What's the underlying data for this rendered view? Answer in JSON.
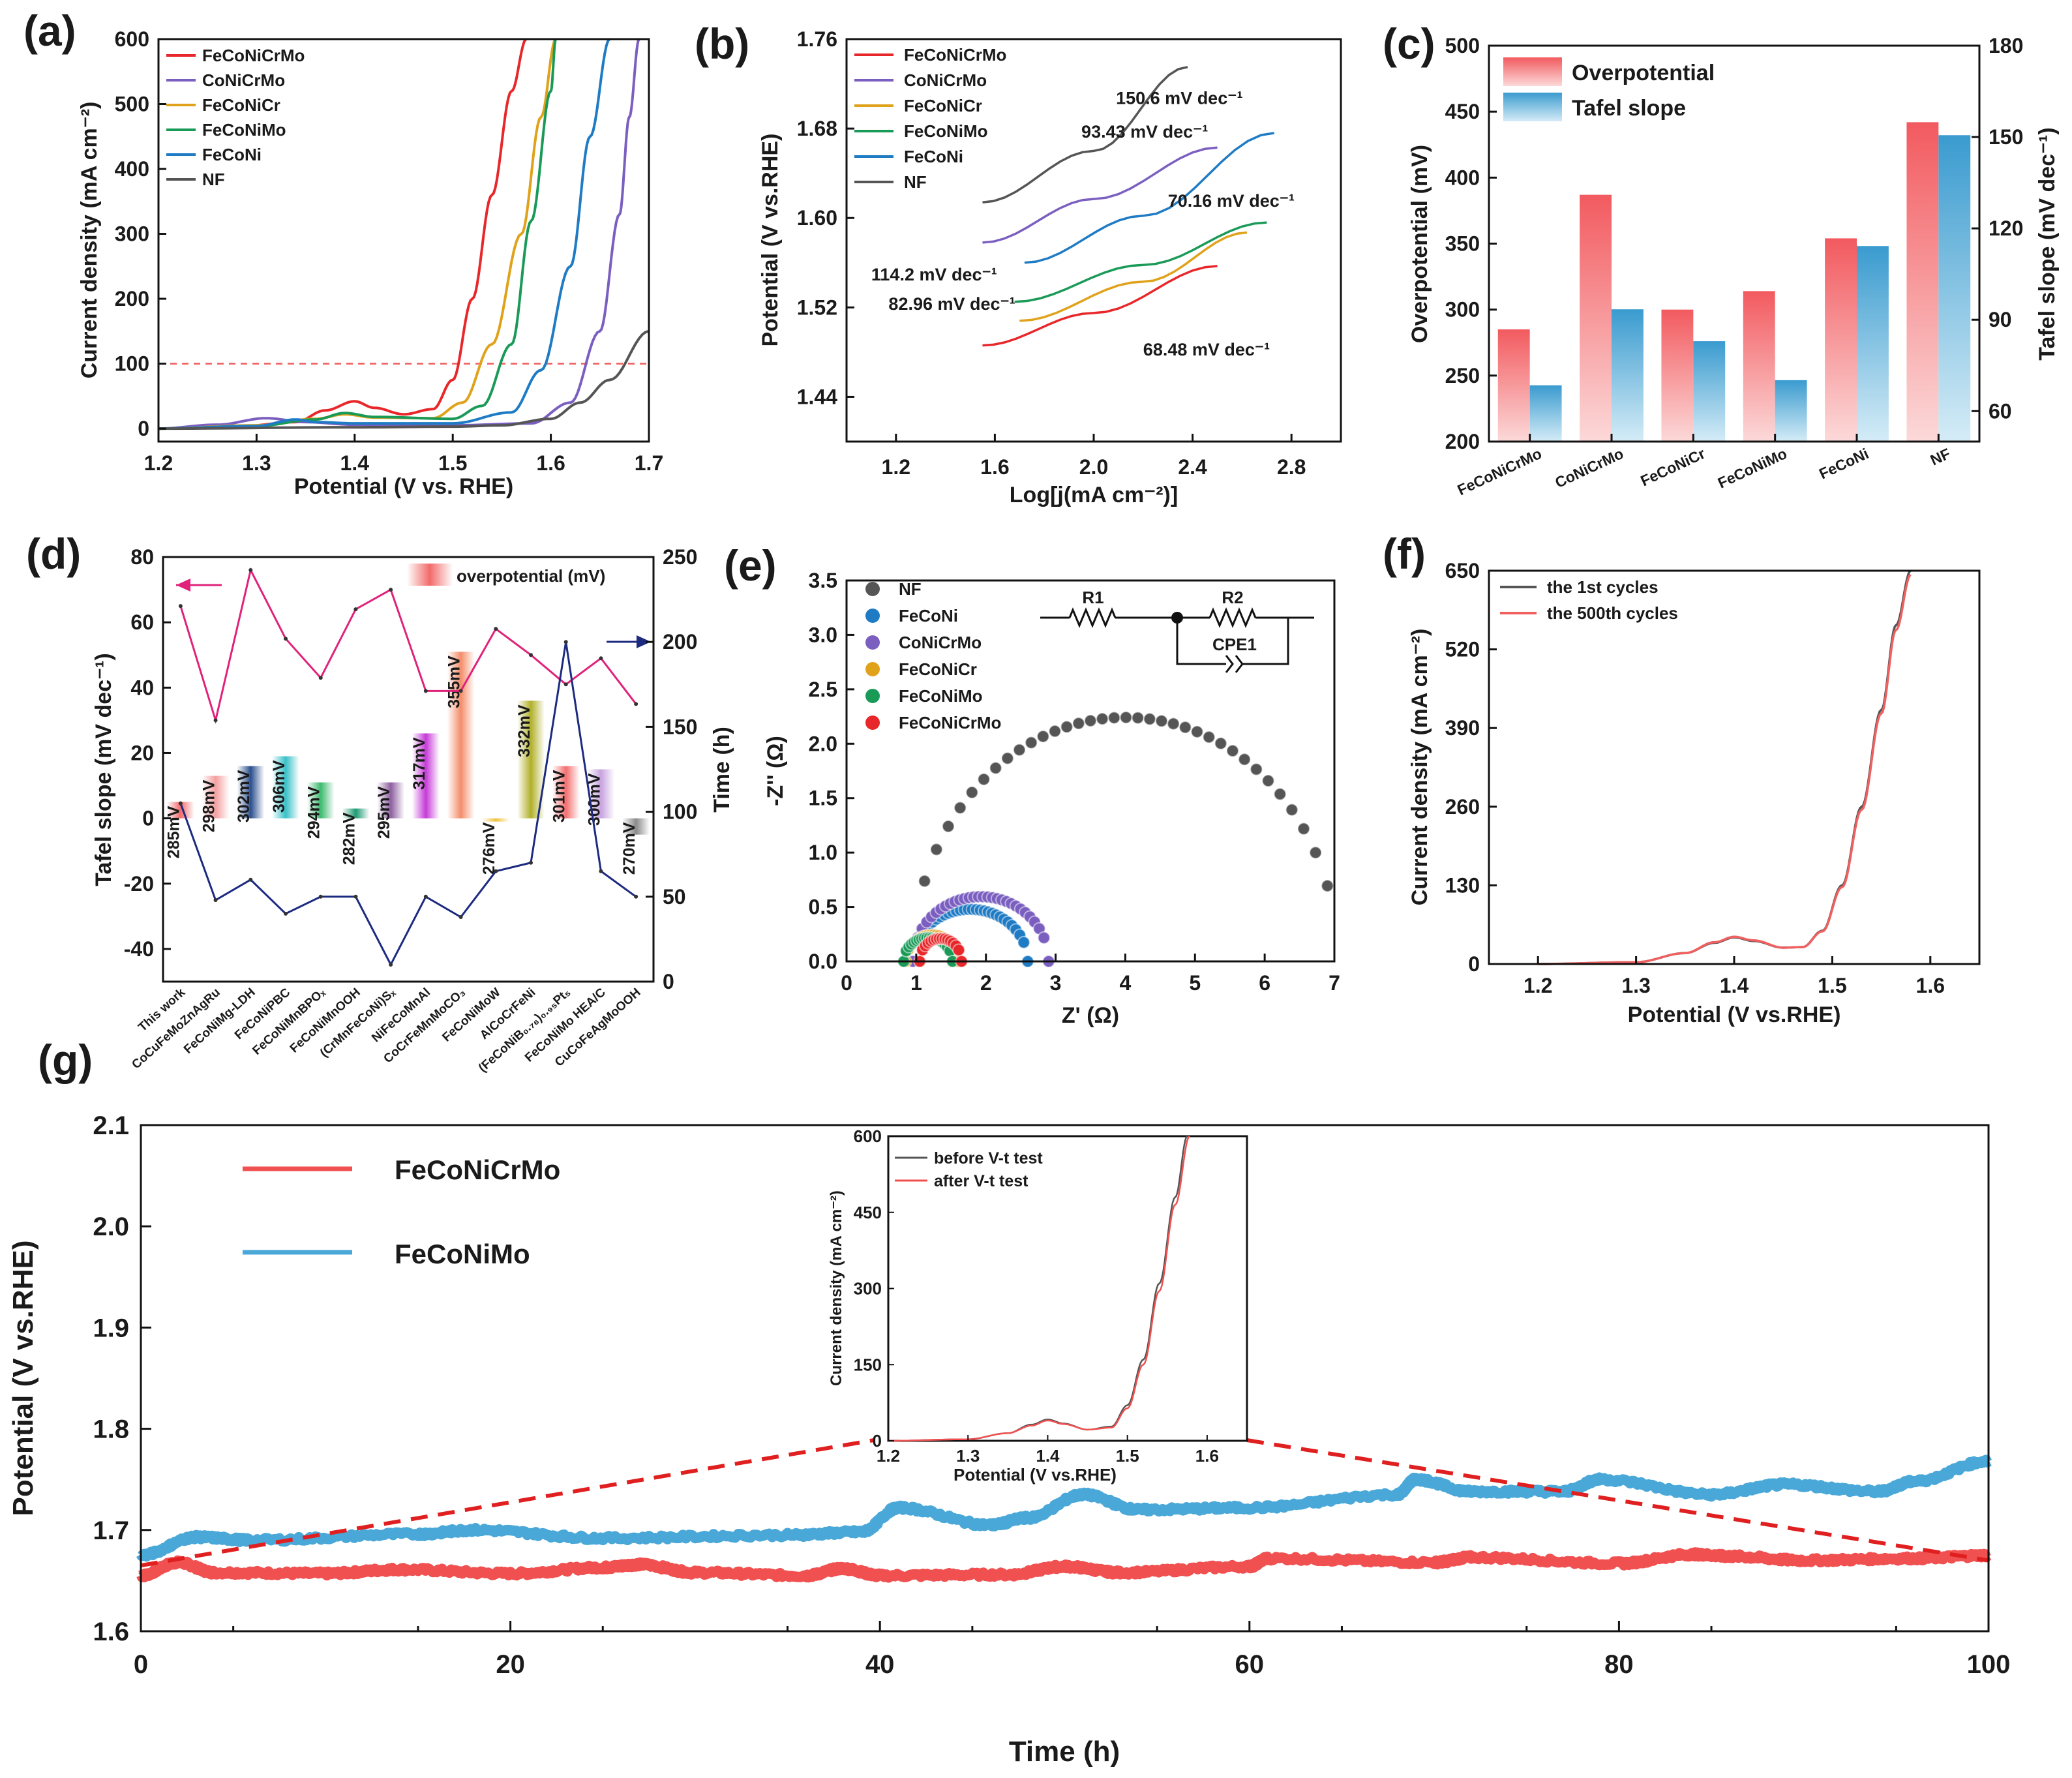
{
  "figure": {
    "panel_labels": [
      "(a)",
      "(b)",
      "(c)",
      "(d)",
      "(e)",
      "(f)",
      "(g)"
    ]
  },
  "colors": {
    "FeCoNiCrMo": "#e8272a",
    "CoNiCrMo": "#7b5fc0",
    "FeCoNiCr": "#e0a21b",
    "FeCoNiMo": "#1a9a57",
    "FeCoNi": "#1e7bc4",
    "NF": "#555555",
    "overpotential": "#f47c7c",
    "tafel": "#4aa6d6",
    "magenta": "#e0227a",
    "navy": "#1c2a80",
    "longterm_red": "#f05050",
    "longterm_blue": "#4aa8d8"
  },
  "chart_data": [
    {
      "id": "a",
      "type": "line",
      "xlabel": "Potential (V vs. RHE)",
      "ylabel": "Current density (mA cm⁻²)",
      "xlim": [
        1.2,
        1.7
      ],
      "ylim": [
        -20,
        600
      ],
      "xticks": [
        "1.2",
        "1.3",
        "1.4",
        "1.5",
        "1.6",
        "1.7"
      ],
      "yticks": [
        "0",
        "100",
        "200",
        "300",
        "400",
        "500",
        "600"
      ],
      "reference_line": {
        "y": 100,
        "style": "dashed"
      },
      "series": [
        {
          "name": "FeCoNiCrMo",
          "x": [
            1.2,
            1.28,
            1.34,
            1.37,
            1.4,
            1.42,
            1.45,
            1.48,
            1.5,
            1.52,
            1.54,
            1.56,
            1.575
          ],
          "y": [
            0,
            3,
            10,
            28,
            42,
            32,
            22,
            30,
            75,
            200,
            360,
            520,
            600
          ]
        },
        {
          "name": "CoNiCrMo",
          "x": [
            1.2,
            1.26,
            1.31,
            1.35,
            1.4,
            1.5,
            1.58,
            1.62,
            1.65,
            1.67,
            1.68,
            1.69
          ],
          "y": [
            0,
            6,
            16,
            10,
            6,
            5,
            8,
            40,
            150,
            330,
            480,
            600
          ]
        },
        {
          "name": "FeCoNiCr",
          "x": [
            1.2,
            1.3,
            1.36,
            1.39,
            1.42,
            1.48,
            1.51,
            1.54,
            1.57,
            1.59,
            1.605
          ],
          "y": [
            0,
            5,
            15,
            22,
            17,
            16,
            40,
            130,
            300,
            480,
            600
          ]
        },
        {
          "name": "FeCoNiMo",
          "x": [
            1.2,
            1.3,
            1.36,
            1.39,
            1.42,
            1.5,
            1.53,
            1.56,
            1.58,
            1.6,
            1.605
          ],
          "y": [
            0,
            4,
            14,
            24,
            18,
            15,
            35,
            130,
            320,
            520,
            600
          ]
        },
        {
          "name": "FeCoNi",
          "x": [
            1.2,
            1.3,
            1.34,
            1.36,
            1.4,
            1.5,
            1.56,
            1.59,
            1.62,
            1.64,
            1.66
          ],
          "y": [
            0,
            4,
            14,
            10,
            8,
            8,
            25,
            90,
            250,
            450,
            600
          ]
        },
        {
          "name": "NF",
          "x": [
            1.2,
            1.4,
            1.5,
            1.55,
            1.6,
            1.63,
            1.66,
            1.7
          ],
          "y": [
            0,
            2,
            3,
            5,
            15,
            40,
            75,
            150
          ]
        }
      ]
    },
    {
      "id": "b",
      "type": "line",
      "xlabel": "Log[j(mA cm⁻²)]",
      "ylabel": "Potential (V vs.RHE)",
      "xlim": [
        1.0,
        3.0
      ],
      "ylim": [
        1.4,
        1.76
      ],
      "xticks": [
        "1.2",
        "1.6",
        "2.0",
        "2.4",
        "2.8"
      ],
      "yticks": [
        "1.44",
        "1.52",
        "1.60",
        "1.68",
        "1.76"
      ],
      "series": [
        {
          "name": "FeCoNiCrMo",
          "x": [
            1.55,
            2.0,
            2.5
          ],
          "y": [
            1.486,
            1.515,
            1.557
          ],
          "annotation": "68.48 mV dec⁻¹"
        },
        {
          "name": "CoNiCrMo",
          "x": [
            1.55,
            2.0,
            2.5
          ],
          "y": [
            1.578,
            1.617,
            1.663
          ],
          "annotation": "93.43 mV dec⁻¹"
        },
        {
          "name": "FeCoNiCr",
          "x": [
            1.7,
            2.2,
            2.62
          ],
          "y": [
            1.508,
            1.543,
            1.587
          ],
          "annotation": "82.96 mV dec⁻¹"
        },
        {
          "name": "FeCoNiMo",
          "x": [
            1.68,
            2.2,
            2.7
          ],
          "y": [
            1.525,
            1.558,
            1.596
          ],
          "annotation": "70.16 mV dec⁻¹"
        },
        {
          "name": "FeCoNi",
          "x": [
            1.72,
            2.2,
            2.73
          ],
          "y": [
            1.56,
            1.602,
            1.676
          ],
          "annotation": "114.2 mV dec⁻¹"
        },
        {
          "name": "NF",
          "x": [
            1.55,
            2.0,
            2.38
          ],
          "y": [
            1.614,
            1.66,
            1.735
          ],
          "annotation": "150.6 mV dec⁻¹"
        }
      ]
    },
    {
      "id": "c",
      "type": "bar",
      "categories": [
        "FeCoNiCrMo",
        "CoNiCrMo",
        "FeCoNiCr",
        "FeCoNiMo",
        "FeCoNi",
        "NF"
      ],
      "ylabel": "Overpotential (mV)",
      "ylabel_right": "Tafel slope (mV dec⁻¹)",
      "ylim": [
        200,
        500
      ],
      "ylim_right": [
        50,
        180
      ],
      "yticks": [
        "200",
        "250",
        "300",
        "350",
        "400",
        "450",
        "500"
      ],
      "yticks_right": [
        "60",
        "90",
        "120",
        "150",
        "180"
      ],
      "series": [
        {
          "name": "Overpotential",
          "axis": "left",
          "values": [
            285,
            387,
            300,
            314,
            354,
            442
          ]
        },
        {
          "name": "Tafel slope",
          "axis": "right",
          "values": [
            68.48,
            93.43,
            82.96,
            70.16,
            114.2,
            150.6
          ]
        }
      ]
    },
    {
      "id": "d",
      "type": "bar",
      "categories": [
        "This work",
        "CoCuFeMoZnAgRu",
        "FeCoNiMg-LDH",
        "FeCoNiPBC",
        "FeCoNiMnBPOₓ",
        "FeCoNiMnOOH",
        "(CrMnFeCoNi)Sₓ",
        "NiFeCoMnAl",
        "CoCrFeMnMoCO₃",
        "FeCoNiMoW",
        "AlCoCrFeNi",
        "(FeCoNiB₀.₇₆)₀.₉₅Pt₅",
        "FeCoNiMo HEA/C",
        "CuCoFeAgMoOOH"
      ],
      "overpotential_labels": [
        "285mV",
        "298mV",
        "302mV",
        "306mV",
        "294mV",
        "282mV",
        "295mV",
        "317mV",
        "355mV",
        "276mV",
        "332mV",
        "301mV",
        "300mV",
        "270mV"
      ],
      "legend": "overpotential (mV)",
      "ylabel": "Tafel slope (mV dec⁻¹)",
      "ylabel_right": "Time (h)",
      "ylim": [
        -50,
        80
      ],
      "ylim_right": [
        0,
        250
      ],
      "yticks": [
        "-40",
        "-20",
        "0",
        "20",
        "40",
        "60",
        "80"
      ],
      "yticks_right": [
        "0",
        "50",
        "100",
        "150",
        "200",
        "250"
      ],
      "bar_colors": [
        "#f26a6a",
        "#f4a0a0",
        "#2a4f8e",
        "#38c0c8",
        "#3dba6e",
        "#1f9a73",
        "#8e5fa0",
        "#c63ad8",
        "#f48d6a",
        "#f0c23c",
        "#b1b02a",
        "#f46e6e",
        "#c8a3e0",
        "#8a8a8a"
      ],
      "series": [
        {
          "name": "overpotential (mV)",
          "type": "bar",
          "axis": "left",
          "values": [
            5,
            13,
            16,
            19,
            11,
            3,
            11,
            26,
            51,
            -1,
            36,
            16,
            15,
            -5
          ]
        },
        {
          "name": "Tafel slope",
          "type": "line",
          "axis": "left",
          "values": [
            65,
            30,
            76,
            55,
            43,
            64,
            70,
            39,
            39,
            58,
            50,
            41,
            49,
            35
          ]
        },
        {
          "name": "Time",
          "type": "line",
          "axis": "right",
          "values": [
            105,
            48,
            60,
            40,
            50,
            50,
            10,
            50,
            38,
            65,
            70,
            200,
            65,
            50
          ]
        }
      ]
    },
    {
      "id": "e",
      "type": "scatter",
      "xlabel": "Z' (Ω)",
      "ylabel": "-Z'' (Ω)",
      "xlim": [
        0,
        7
      ],
      "ylim": [
        0,
        3.5
      ],
      "xticks": [
        "0",
        "1",
        "2",
        "3",
        "4",
        "5",
        "6",
        "7"
      ],
      "yticks": [
        "0.0",
        "0.5",
        "1.0",
        "1.5",
        "2.0",
        "2.5",
        "3.0",
        "3.5"
      ],
      "circuit": {
        "r1": "R1",
        "r2": "R2",
        "cpe": "CPE1"
      },
      "series": [
        {
          "name": "NF",
          "r_s": 0.95,
          "r_ct": 6.1,
          "yscale": 0.75,
          "xmax": 6.9,
          "points": 36
        },
        {
          "name": "FeCoNi",
          "r_s": 0.95,
          "r_ct": 1.65,
          "yscale": 0.58,
          "points": 30
        },
        {
          "name": "CoNiCrMo",
          "r_s": 0.95,
          "r_ct": 1.95,
          "yscale": 0.61,
          "points": 30
        },
        {
          "name": "FeCoNiCr",
          "r_s": 0.85,
          "r_ct": 0.75,
          "yscale": 0.65,
          "points": 20
        },
        {
          "name": "FeCoNiMo",
          "r_s": 0.82,
          "r_ct": 0.7,
          "yscale": 0.62,
          "points": 20
        },
        {
          "name": "FeCoNiCrMo",
          "r_s": 1.05,
          "r_ct": 0.6,
          "yscale": 0.7,
          "points": 16
        }
      ]
    },
    {
      "id": "f",
      "type": "line",
      "xlabel": "Potential (V vs.RHE)",
      "ylabel": "Current density (mA cm⁻²)",
      "xlim": [
        1.15,
        1.65
      ],
      "ylim": [
        0,
        650
      ],
      "xticks": [
        "1.2",
        "1.3",
        "1.4",
        "1.5",
        "1.6"
      ],
      "yticks": [
        "0",
        "130",
        "260",
        "390",
        "520",
        "650"
      ],
      "series": [
        {
          "name": "the 1st cycles",
          "x": [
            1.2,
            1.3,
            1.35,
            1.38,
            1.4,
            1.42,
            1.45,
            1.47,
            1.49,
            1.51,
            1.53,
            1.55,
            1.565,
            1.58
          ],
          "y": [
            0,
            3,
            18,
            35,
            44,
            38,
            27,
            28,
            55,
            130,
            260,
            420,
            560,
            650
          ]
        },
        {
          "name": "the 500th cycles",
          "x": [
            1.2,
            1.3,
            1.35,
            1.38,
            1.4,
            1.42,
            1.45,
            1.47,
            1.49,
            1.51,
            1.53,
            1.55,
            1.565,
            1.58
          ],
          "y": [
            0,
            3,
            18,
            36,
            45,
            39,
            27,
            28,
            54,
            127,
            255,
            414,
            552,
            643
          ]
        }
      ]
    },
    {
      "id": "g",
      "type": "line",
      "xlabel": "Time (h)",
      "ylabel": "Potential (V vs.RHE)",
      "xlim": [
        0,
        100
      ],
      "ylim": [
        1.6,
        2.1
      ],
      "xticks": [
        "0",
        "20",
        "40",
        "60",
        "80",
        "100"
      ],
      "yticks": [
        "1.6",
        "1.7",
        "1.8",
        "1.9",
        "2.0",
        "2.1"
      ],
      "series": [
        {
          "name": "FeCoNiCrMo",
          "x": [
            0,
            2,
            4,
            10,
            14,
            20,
            25,
            27,
            30,
            36,
            38,
            40,
            47,
            50,
            53,
            60,
            61,
            70,
            72,
            80,
            84,
            86,
            90,
            96,
            100
          ],
          "y": [
            1.655,
            1.668,
            1.658,
            1.657,
            1.661,
            1.657,
            1.663,
            1.666,
            1.658,
            1.655,
            1.662,
            1.655,
            1.656,
            1.664,
            1.658,
            1.664,
            1.672,
            1.668,
            1.673,
            1.667,
            1.676,
            1.674,
            1.67,
            1.672,
            1.675
          ]
        },
        {
          "name": "FeCoNiMo",
          "x": [
            0,
            3,
            6,
            15,
            18,
            25,
            35,
            39,
            41,
            46,
            48,
            51,
            54,
            60,
            68,
            69,
            72,
            77,
            79,
            85,
            89,
            94,
            96,
            100
          ],
          "y": [
            1.675,
            1.693,
            1.69,
            1.696,
            1.7,
            1.692,
            1.695,
            1.698,
            1.722,
            1.705,
            1.712,
            1.735,
            1.72,
            1.722,
            1.735,
            1.75,
            1.738,
            1.738,
            1.75,
            1.735,
            1.745,
            1.738,
            1.748,
            1.768
          ]
        }
      ],
      "inset": {
        "xlabel": "Potential (V vs.RHE)",
        "ylabel": "Current density (mA cm⁻²)",
        "xlim": [
          1.2,
          1.65
        ],
        "ylim": [
          0,
          600
        ],
        "xticks": [
          "1.2",
          "1.3",
          "1.4",
          "1.5",
          "1.6"
        ],
        "yticks": [
          "0",
          "150",
          "300",
          "450",
          "600"
        ],
        "series": [
          {
            "name": "before V-t test",
            "x": [
              1.2,
              1.3,
              1.35,
              1.38,
              1.4,
              1.42,
              1.45,
              1.48,
              1.5,
              1.52,
              1.54,
              1.56,
              1.575
            ],
            "y": [
              0,
              3,
              15,
              32,
              42,
              34,
              22,
              28,
              70,
              160,
              310,
              480,
              600
            ]
          },
          {
            "name": "after V-t test",
            "x": [
              1.2,
              1.3,
              1.35,
              1.38,
              1.4,
              1.42,
              1.45,
              1.48,
              1.5,
              1.52,
              1.54,
              1.56,
              1.578
            ],
            "y": [
              0,
              3,
              15,
              30,
              40,
              33,
              22,
              26,
              64,
              150,
              295,
              465,
              600
            ]
          }
        ]
      }
    }
  ]
}
